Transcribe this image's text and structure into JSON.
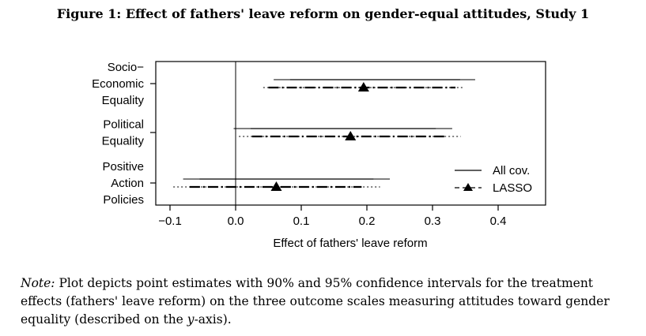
{
  "figure_title": "Figure 1: Effect of fathers' leave reform on gender-equal attitudes, Study 1",
  "note": {
    "label": "Note:",
    "text_before_y": " Plot depicts point estimates with 90% and 95% confidence intervals for the treatment effects (fathers' leave reform) on the three outcome scales measuring attitudes toward gender equality (described on the ",
    "y_italic": "y",
    "text_after_y": "-axis)."
  },
  "chart_data": {
    "type": "forest",
    "xlabel": "Effect of fathers' leave reform",
    "xlim": [
      -0.1,
      0.47
    ],
    "xticks": [
      -0.1,
      0.0,
      0.1,
      0.2,
      0.3,
      0.4
    ],
    "xtick_labels": [
      "−0.1",
      "0.0",
      "0.1",
      "0.2",
      "0.3",
      "0.4"
    ],
    "reference_line": 0,
    "grid": false,
    "legend_position": "bottom-right",
    "categories": [
      [
        "Socio−",
        "Economic",
        "Equality"
      ],
      [
        "Political",
        "Equality"
      ],
      [
        "Positive",
        "Action",
        "Policies"
      ]
    ],
    "series": [
      {
        "name": "All cov.",
        "line_style": "solid",
        "marker": "none",
        "estimates": [
          0.195,
          0.172,
          0.062
        ],
        "ci90": [
          [
            0.083,
            0.342
          ],
          [
            0.023,
            0.305
          ],
          [
            -0.055,
            0.21
          ]
        ],
        "ci95": [
          [
            0.058,
            0.365
          ],
          [
            -0.003,
            0.33
          ],
          [
            -0.08,
            0.235
          ]
        ]
      },
      {
        "name": "LASSO",
        "line_style": "dash-dot",
        "marker": "triangle",
        "estimates": [
          0.195,
          0.175,
          0.062
        ],
        "ci90": [
          [
            0.05,
            0.335
          ],
          [
            0.025,
            0.318
          ],
          [
            -0.07,
            0.192
          ]
        ],
        "ci95": [
          [
            0.042,
            0.348
          ],
          [
            0.005,
            0.343
          ],
          [
            -0.095,
            0.22
          ]
        ]
      }
    ]
  }
}
